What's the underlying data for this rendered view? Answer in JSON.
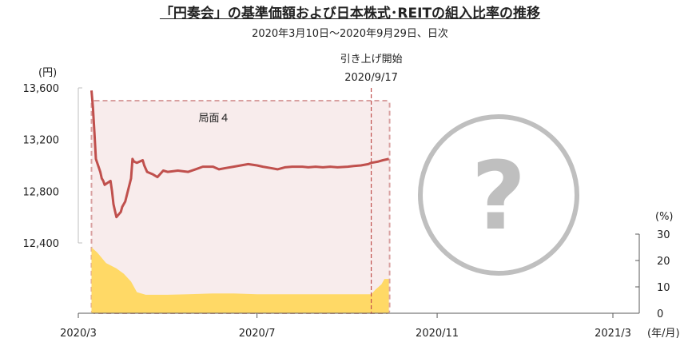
{
  "chart_data": {
    "type": "line",
    "title": "「円奏会」の基準価額および日本株式･REITの組入比率の推移",
    "subtitle": "2020年3月10日～2020年9月29日、日次",
    "left_axis": {
      "unit": "(円)",
      "ylim": [
        12400,
        13600
      ],
      "ticks": [
        "13,600",
        "13,200",
        "12,800",
        "12,400"
      ],
      "tick_values": [
        13600,
        13200,
        12800,
        12400
      ]
    },
    "right_axis": {
      "unit": "(%)",
      "ylim": [
        0,
        30
      ],
      "ticks": [
        "30",
        "20",
        "10",
        "0"
      ],
      "tick_values": [
        30,
        20,
        10,
        0
      ]
    },
    "x_axis": {
      "unit": "(年/月)",
      "ticks": [
        "2020/3",
        "2020/7",
        "2020/11",
        "2021/3"
      ],
      "tick_values": [
        "2020-03-01",
        "2020-07-01",
        "2020-11-01",
        "2021-03-01"
      ]
    },
    "series": [
      {
        "kind": "line",
        "axis": "left",
        "color": "#c0504d",
        "points": [
          [
            "2020-03-10",
            13580
          ],
          [
            "2020-03-11",
            13450
          ],
          [
            "2020-03-12",
            13250
          ],
          [
            "2020-03-13",
            13050
          ],
          [
            "2020-03-16",
            12950
          ],
          [
            "2020-03-17",
            12900
          ],
          [
            "2020-03-18",
            12880
          ],
          [
            "2020-03-19",
            12850
          ],
          [
            "2020-03-23",
            12880
          ],
          [
            "2020-03-24",
            12800
          ],
          [
            "2020-03-25",
            12700
          ],
          [
            "2020-03-26",
            12650
          ],
          [
            "2020-03-27",
            12600
          ],
          [
            "2020-03-30",
            12640
          ],
          [
            "2020-03-31",
            12680
          ],
          [
            "2020-04-02",
            12720
          ],
          [
            "2020-04-06",
            12900
          ],
          [
            "2020-04-07",
            13050
          ],
          [
            "2020-04-08",
            13030
          ],
          [
            "2020-04-10",
            13020
          ],
          [
            "2020-04-14",
            13040
          ],
          [
            "2020-04-15",
            13000
          ],
          [
            "2020-04-17",
            12950
          ],
          [
            "2020-04-21",
            12930
          ],
          [
            "2020-04-24",
            12910
          ],
          [
            "2020-04-28",
            12960
          ],
          [
            "2020-05-01",
            12950
          ],
          [
            "2020-05-08",
            12960
          ],
          [
            "2020-05-15",
            12950
          ],
          [
            "2020-05-20",
            12970
          ],
          [
            "2020-05-25",
            12990
          ],
          [
            "2020-06-01",
            12990
          ],
          [
            "2020-06-05",
            12970
          ],
          [
            "2020-06-10",
            12980
          ],
          [
            "2020-06-15",
            12990
          ],
          [
            "2020-06-20",
            13000
          ],
          [
            "2020-06-25",
            13010
          ],
          [
            "2020-07-01",
            13000
          ],
          [
            "2020-07-05",
            12990
          ],
          [
            "2020-07-10",
            12980
          ],
          [
            "2020-07-15",
            12970
          ],
          [
            "2020-07-20",
            12985
          ],
          [
            "2020-07-25",
            12990
          ],
          [
            "2020-08-01",
            12990
          ],
          [
            "2020-08-05",
            12985
          ],
          [
            "2020-08-10",
            12990
          ],
          [
            "2020-08-15",
            12985
          ],
          [
            "2020-08-20",
            12990
          ],
          [
            "2020-08-25",
            12985
          ],
          [
            "2020-09-01",
            12990
          ],
          [
            "2020-09-05",
            12995
          ],
          [
            "2020-09-10",
            13000
          ],
          [
            "2020-09-15",
            13010
          ],
          [
            "2020-09-17",
            13020
          ],
          [
            "2020-09-22",
            13030
          ],
          [
            "2020-09-25",
            13040
          ],
          [
            "2020-09-29",
            13050
          ]
        ]
      },
      {
        "kind": "area",
        "axis": "right",
        "color": "#ffd966",
        "points": [
          [
            "2020-03-10",
            25
          ],
          [
            "2020-03-14",
            23
          ],
          [
            "2020-03-20",
            19
          ],
          [
            "2020-03-27",
            17
          ],
          [
            "2020-04-01",
            15
          ],
          [
            "2020-04-06",
            12
          ],
          [
            "2020-04-10",
            8
          ],
          [
            "2020-04-16",
            7
          ],
          [
            "2020-04-24",
            7
          ],
          [
            "2020-05-01",
            7
          ],
          [
            "2020-05-15",
            7.2
          ],
          [
            "2020-06-01",
            7.5
          ],
          [
            "2020-06-15",
            7.5
          ],
          [
            "2020-07-01",
            7.2
          ],
          [
            "2020-07-15",
            7.2
          ],
          [
            "2020-08-01",
            7.2
          ],
          [
            "2020-08-15",
            7.2
          ],
          [
            "2020-09-01",
            7.2
          ],
          [
            "2020-09-10",
            7.2
          ],
          [
            "2020-09-17",
            7.2
          ],
          [
            "2020-09-20",
            9
          ],
          [
            "2020-09-24",
            11
          ],
          [
            "2020-09-26",
            13
          ],
          [
            "2020-09-29",
            13
          ]
        ]
      }
    ],
    "annotations": {
      "phase_label": "局面４",
      "phase_start": "2020-03-10",
      "phase_end": "2020-09-29",
      "event_label_1": "引き上げ開始",
      "event_label_2": "2020/9/17",
      "event_date": "2020-09-17",
      "placeholder": "?"
    },
    "colors": {
      "price_line": "#c0504d",
      "equity_area": "#ffd966",
      "phase_box_fill": "#f8ecec",
      "phase_box_border": "#d9a0a0",
      "event_line": "#c0504d",
      "question_circle": "#bfbfbf"
    }
  }
}
